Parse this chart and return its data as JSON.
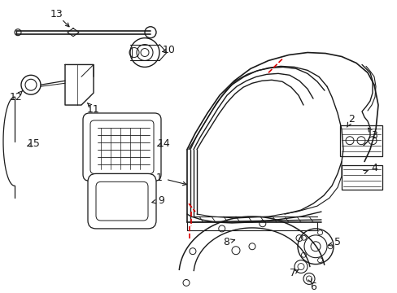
{
  "bg_color": "#ffffff",
  "line_color": "#1a1a1a",
  "red_color": "#dd0000",
  "figsize": [
    4.89,
    3.6
  ],
  "dpi": 100,
  "lw": 0.9
}
